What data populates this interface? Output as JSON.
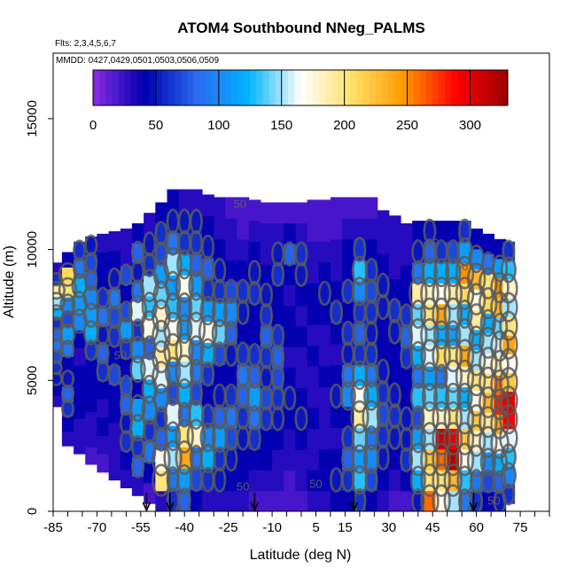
{
  "chart_data": {
    "type": "heatmap",
    "title": "ATOM4 Southbound NNeg_PALMS",
    "flights_note": "Flts: 2,3,4,5,6,7",
    "dates_note": "MMDD: 0427,0429,0501,0503,0506,0509",
    "xlabel": "Latitude (deg N)",
    "ylabel": "Altitude (m)",
    "xlim": [
      -85,
      85
    ],
    "ylim": [
      0,
      17500
    ],
    "x_ticks": [
      -85,
      -70,
      -55,
      -40,
      -25,
      -10,
      5,
      15,
      30,
      45,
      60,
      75
    ],
    "x_minor_step": 5,
    "y_ticks": [
      0,
      5000,
      10000,
      15000
    ],
    "colorbar": {
      "min": 0,
      "max": 330,
      "ticks": [
        0,
        50,
        100,
        150,
        200,
        250,
        300
      ],
      "colors": [
        "#8a2be2",
        "#0000b0",
        "#2a6af0",
        "#00b4ff",
        "#ffffff",
        "#ffe066",
        "#ff9900",
        "#ff0000",
        "#9a0000"
      ]
    },
    "contour_levels": [
      50,
      100,
      150
    ],
    "contour_labels": [
      {
        "text": "50",
        "lat": -21,
        "alt": 11600
      },
      {
        "text": "50",
        "lat": -62,
        "alt": 5800
      },
      {
        "text": "50",
        "lat": -20,
        "alt": 800
      },
      {
        "text": "50",
        "lat": 5,
        "alt": 900
      },
      {
        "text": "50",
        "lat": 45,
        "alt": 10100
      },
      {
        "text": "50",
        "lat": 55,
        "alt": 9200
      },
      {
        "text": "50",
        "lat": 66,
        "alt": 250
      }
    ],
    "arrows_lat": [
      -53,
      -45,
      -16,
      18,
      59
    ],
    "columns": [
      {
        "lat": -84,
        "top": 9500,
        "bottom": 4000,
        "values": [
          30,
          40,
          50,
          60,
          70,
          90,
          80,
          60,
          120,
          150,
          190,
          60,
          30
        ]
      },
      {
        "lat": -80,
        "top": 9900,
        "bottom": 2500,
        "values": [
          30,
          40,
          60,
          80,
          50,
          40,
          90,
          110,
          70,
          100,
          200,
          210,
          40
        ]
      },
      {
        "lat": -76,
        "top": 10300,
        "bottom": 2200,
        "values": [
          30,
          30,
          40,
          40,
          40,
          30,
          40,
          100,
          110,
          120,
          90,
          60
        ]
      },
      {
        "lat": -72,
        "top": 10500,
        "bottom": 1800,
        "values": [
          20,
          30,
          30,
          40,
          40,
          40,
          60,
          120,
          110,
          100,
          80,
          70,
          50
        ]
      },
      {
        "lat": -68,
        "top": 10600,
        "bottom": 1500,
        "values": [
          20,
          30,
          40,
          30,
          40,
          60,
          80,
          50,
          90,
          60,
          40,
          40,
          30
        ]
      },
      {
        "lat": -64,
        "top": 10700,
        "bottom": 1200,
        "values": [
          30,
          30,
          30,
          40,
          40,
          70,
          40,
          60,
          70,
          90,
          50,
          40,
          30
        ]
      },
      {
        "lat": -60,
        "top": 10800,
        "bottom": 900,
        "values": [
          30,
          40,
          60,
          50,
          80,
          70,
          40,
          60,
          110,
          70,
          40,
          70,
          30,
          30
        ]
      },
      {
        "lat": -56,
        "top": 11000,
        "bottom": 600,
        "values": [
          30,
          80,
          60,
          120,
          110,
          40,
          140,
          100,
          60,
          160,
          90,
          50,
          80,
          40
        ]
      },
      {
        "lat": -52,
        "top": 11400,
        "bottom": 300,
        "values": [
          20,
          40,
          90,
          60,
          100,
          120,
          160,
          80,
          170,
          130,
          150,
          60,
          50,
          30
        ]
      },
      {
        "lat": -48,
        "top": 11800,
        "bottom": 0,
        "values": [
          30,
          200,
          170,
          80,
          60,
          100,
          160,
          190,
          150,
          180,
          140,
          110,
          70,
          60,
          40
        ]
      },
      {
        "lat": -44,
        "top": 12300,
        "bottom": 0,
        "values": [
          60,
          90,
          150,
          110,
          160,
          70,
          100,
          200,
          170,
          130,
          110,
          150,
          90,
          50,
          40
        ]
      },
      {
        "lat": -40,
        "top": 12300,
        "bottom": 0,
        "values": [
          80,
          110,
          240,
          200,
          90,
          120,
          150,
          180,
          110,
          100,
          170,
          120,
          60,
          50,
          30
        ]
      },
      {
        "lat": -36,
        "top": 12300,
        "bottom": 0,
        "values": [
          40,
          70,
          90,
          180,
          130,
          70,
          90,
          100,
          160,
          140,
          110,
          80,
          60,
          50,
          30
        ]
      },
      {
        "lat": -32,
        "top": 12100,
        "bottom": 0,
        "values": [
          30,
          60,
          120,
          100,
          60,
          40,
          60,
          120,
          170,
          110,
          60,
          80,
          50,
          40,
          30
        ]
      },
      {
        "lat": -28,
        "top": 12000,
        "bottom": 0,
        "values": [
          30,
          50,
          60,
          110,
          80,
          50,
          40,
          70,
          140,
          110,
          60,
          50,
          40,
          30,
          30
        ]
      },
      {
        "lat": -24,
        "top": 12000,
        "bottom": 0,
        "values": [
          30,
          40,
          50,
          70,
          90,
          60,
          40,
          50,
          80,
          100,
          70,
          40,
          30,
          30,
          20
        ]
      },
      {
        "lat": -20,
        "top": 12000,
        "bottom": 0,
        "values": [
          30,
          40,
          40,
          50,
          60,
          80,
          90,
          60,
          40,
          50,
          60,
          40,
          30,
          20,
          20
        ]
      },
      {
        "lat": -16,
        "top": 11900,
        "bottom": 0,
        "values": [
          20,
          30,
          40,
          60,
          90,
          110,
          80,
          60,
          40,
          40,
          60,
          50,
          40,
          30,
          20
        ]
      },
      {
        "lat": -12,
        "top": 11800,
        "bottom": 0,
        "values": [
          20,
          30,
          40,
          40,
          60,
          70,
          50,
          60,
          80,
          60,
          50,
          40,
          30,
          30,
          20
        ]
      },
      {
        "lat": -8,
        "top": 11800,
        "bottom": 0,
        "values": [
          20,
          30,
          30,
          40,
          50,
          60,
          70,
          80,
          60,
          40,
          40,
          60,
          50,
          30,
          20
        ]
      },
      {
        "lat": -4,
        "top": 11800,
        "bottom": 0,
        "values": [
          20,
          20,
          30,
          30,
          40,
          50,
          40,
          30,
          40,
          40,
          30,
          40,
          80,
          40,
          20
        ]
      },
      {
        "lat": 0,
        "top": 11800,
        "bottom": 0,
        "values": [
          20,
          30,
          30,
          40,
          50,
          40,
          30,
          30,
          40,
          30,
          40,
          50,
          60,
          30,
          20
        ]
      },
      {
        "lat": 4,
        "top": 11900,
        "bottom": 0,
        "values": [
          30,
          40,
          30,
          30,
          40,
          30,
          30,
          40,
          30,
          40,
          40,
          30,
          30,
          20,
          20
        ]
      },
      {
        "lat": 8,
        "top": 11900,
        "bottom": 0,
        "values": [
          30,
          40,
          40,
          30,
          30,
          30,
          40,
          30,
          30,
          40,
          50,
          40,
          30,
          20,
          20
        ]
      },
      {
        "lat": 12,
        "top": 12000,
        "bottom": 0,
        "values": [
          40,
          50,
          40,
          30,
          40,
          50,
          40,
          30,
          40,
          60,
          40,
          30,
          30,
          20,
          20
        ]
      },
      {
        "lat": 16,
        "top": 12000,
        "bottom": 0,
        "values": [
          40,
          60,
          80,
          60,
          40,
          100,
          90,
          50,
          60,
          40,
          60,
          40,
          40,
          30,
          20
        ]
      },
      {
        "lat": 20,
        "top": 12000,
        "bottom": 0,
        "values": [
          60,
          130,
          110,
          140,
          190,
          170,
          120,
          60,
          80,
          60,
          100,
          130,
          60,
          30,
          20
        ]
      },
      {
        "lat": 24,
        "top": 12000,
        "bottom": 0,
        "values": [
          40,
          70,
          100,
          90,
          150,
          120,
          90,
          60,
          50,
          60,
          70,
          60,
          40,
          30,
          20
        ]
      },
      {
        "lat": 28,
        "top": 11500,
        "bottom": 0,
        "values": [
          30,
          40,
          50,
          60,
          70,
          60,
          50,
          40,
          40,
          50,
          50,
          40,
          30,
          30
        ]
      },
      {
        "lat": 32,
        "top": 11300,
        "bottom": 0,
        "values": [
          20,
          30,
          40,
          50,
          60,
          50,
          40,
          40,
          50,
          60,
          40,
          30,
          30,
          30
        ]
      },
      {
        "lat": 36,
        "top": 11000,
        "bottom": 0,
        "values": [
          20,
          40,
          60,
          50,
          50,
          40,
          40,
          60,
          80,
          60,
          40,
          40,
          30,
          30
        ]
      },
      {
        "lat": 40,
        "top": 11100,
        "bottom": 0,
        "values": [
          50,
          120,
          150,
          110,
          70,
          130,
          90,
          120,
          160,
          140,
          190,
          90,
          50,
          40
        ]
      },
      {
        "lat": 44,
        "top": 11100,
        "bottom": 0,
        "values": [
          260,
          200,
          220,
          150,
          180,
          140,
          110,
          160,
          150,
          200,
          180,
          120,
          80,
          50
        ]
      },
      {
        "lat": 48,
        "top": 11100,
        "bottom": 0,
        "values": [
          170,
          200,
          260,
          310,
          180,
          130,
          90,
          210,
          120,
          240,
          170,
          120,
          60,
          40
        ]
      },
      {
        "lat": 52,
        "top": 11100,
        "bottom": 0,
        "values": [
          150,
          230,
          320,
          300,
          200,
          140,
          160,
          200,
          110,
          150,
          190,
          120,
          70,
          40
        ]
      },
      {
        "lat": 56,
        "top": 11100,
        "bottom": 0,
        "values": [
          90,
          130,
          170,
          220,
          150,
          120,
          180,
          240,
          150,
          120,
          210,
          250,
          110,
          60
        ]
      },
      {
        "lat": 60,
        "top": 10800,
        "bottom": 0,
        "values": [
          60,
          90,
          150,
          180,
          220,
          170,
          200,
          150,
          120,
          190,
          170,
          230,
          100,
          40
        ]
      },
      {
        "lat": 64,
        "top": 10600,
        "bottom": 0,
        "values": [
          40,
          70,
          100,
          150,
          190,
          230,
          200,
          170,
          150,
          120,
          210,
          200,
          90,
          40
        ]
      },
      {
        "lat": 68,
        "top": 10400,
        "bottom": 0,
        "values": [
          50,
          80,
          120,
          170,
          240,
          280,
          260,
          190,
          160,
          140,
          230,
          250,
          110,
          40
        ]
      },
      {
        "lat": 71,
        "top": 10300,
        "bottom": 300,
        "values": [
          60,
          100,
          130,
          160,
          290,
          300,
          220,
          170,
          240,
          200,
          150,
          180,
          130,
          60
        ]
      }
    ]
  }
}
